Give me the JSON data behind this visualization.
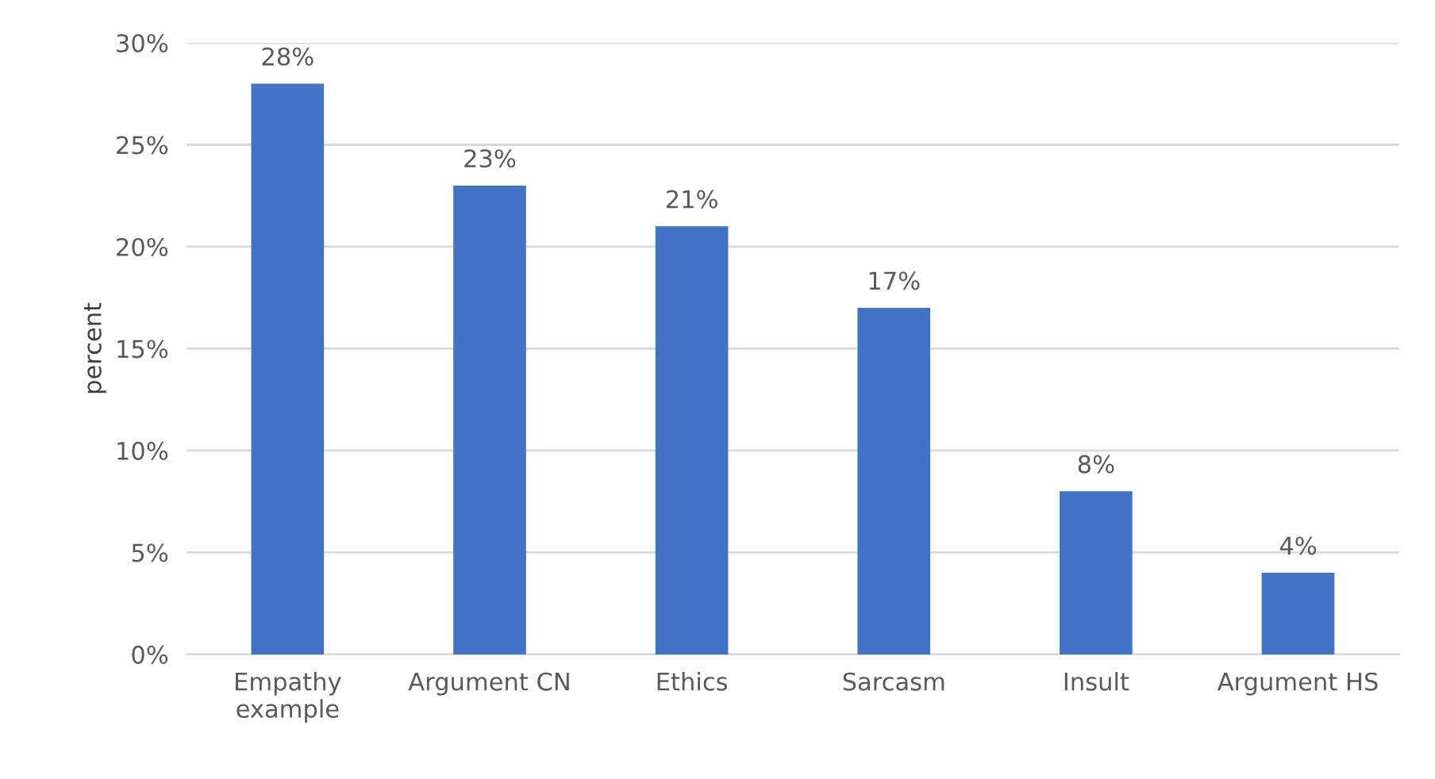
{
  "chart_data": {
    "type": "bar",
    "categories": [
      "Empathy\nexample",
      "Argument CN",
      "Ethics",
      "Sarcasm",
      "Insult",
      "Argument HS"
    ],
    "values": [
      28,
      23,
      21,
      17,
      8,
      4
    ],
    "value_labels": [
      "28%",
      "23%",
      "21%",
      "17%",
      "8%",
      "4%"
    ],
    "color": "#4472c4",
    "ylabel": "percent",
    "ylim": [
      0,
      30
    ],
    "yticks": [
      {
        "value": 0,
        "label": "0%"
      },
      {
        "value": 5,
        "label": "5%"
      },
      {
        "value": 10,
        "label": "10%"
      },
      {
        "value": 15,
        "label": "15%"
      },
      {
        "value": 20,
        "label": "20%"
      },
      {
        "value": 25,
        "label": "25%"
      },
      {
        "value": 30,
        "label": "30%"
      }
    ],
    "grid": "y"
  }
}
